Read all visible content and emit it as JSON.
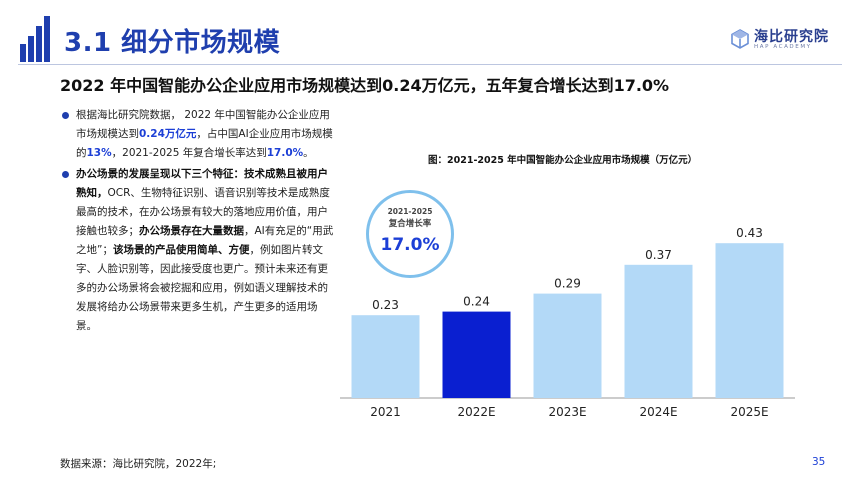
{
  "header": {
    "section_title": "3.1 细分市场规模",
    "brand_name": "海比研究院",
    "brand_sub": "HAP ACADEMY",
    "icon": "cube-logo-icon"
  },
  "headline": "2022 年中国智能办公企业应用市场规模达到0.24万亿元，五年复合增长达到17.0%",
  "bullets": {
    "b1": {
      "p1": "根据海比研究院数据， 2022 年中国智能办公企业应用市场规模达到",
      "h1": "0.24万亿元",
      "p2": "，占中国AI企业应用市场规模的",
      "h2": "13%",
      "p3": "，2021-2025 年复合增长率达到",
      "h3": "17.0%",
      "p4": "。"
    },
    "b2": {
      "s1": "办公场景的发展呈现以下三个特征：技术成熟且被用户熟知，",
      "p1": "OCR、生物特征识别、语音识别等技术是成熟度最高的技术，在办公场景有较大的落地应用价值，用户接触也较多；",
      "s2": "办公场景存在大量数据",
      "p2": "，AI有充足的“用武之地”；",
      "s3": "该场景的产品使用简单、方便",
      "p3": "，例如图片转文字、人脸识别等，因此接受度也更广。预计未来还有更多的办公场景将会被挖掘和应用，例如语义理解技术的发展将给办公场景带来更多生机，产生更多的适用场景。"
    }
  },
  "cagr": {
    "period": "2021-2025",
    "label": "复合增长率",
    "value": "17.0%"
  },
  "chart_data": {
    "type": "bar",
    "title": "图：2021-2025 年中国智能办公企业应用市场规模（万亿元）",
    "categories": [
      "2021",
      "2022E",
      "2023E",
      "2024E",
      "2025E"
    ],
    "values": [
      0.23,
      0.24,
      0.29,
      0.37,
      0.43
    ],
    "value_labels": [
      "0.23",
      "0.24",
      "0.29",
      "0.37",
      "0.43"
    ],
    "highlight_index": 1,
    "colors": {
      "default": "#b3d9f7",
      "highlight": "#0a1fd0",
      "axis": "#999999"
    },
    "ylim": [
      0,
      0.5
    ],
    "xlabel": "",
    "ylabel": "",
    "grid": false,
    "legend": "none"
  },
  "footer": {
    "source": "数据来源：海比研究院，2022年;",
    "page": "35"
  },
  "colors": {
    "accent": "#1f3fae",
    "highlight_text": "#1c3fd6"
  }
}
